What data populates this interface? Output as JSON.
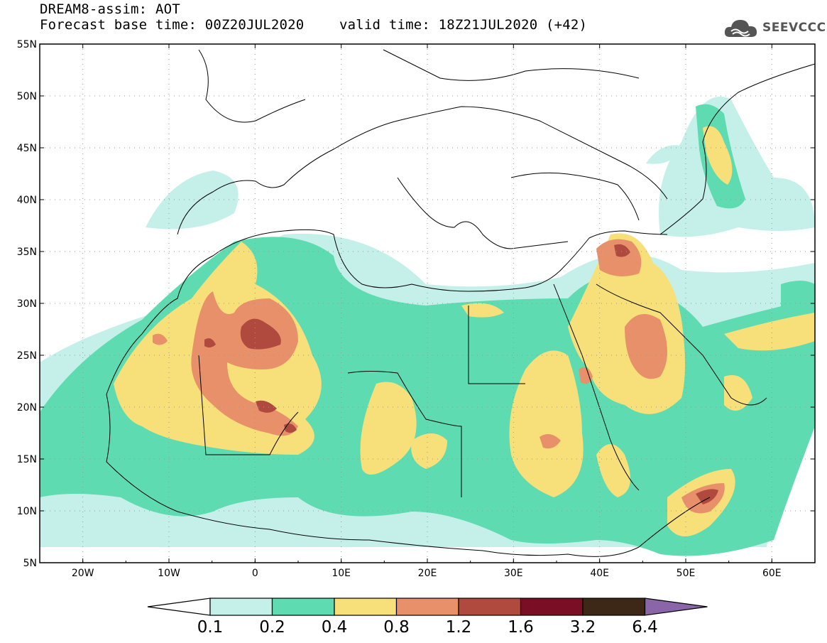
{
  "header": {
    "line1": "DREAM8-assim: AOT",
    "line2": "Forecast base time: 00Z20JUL2020",
    "line3": "valid time: 18Z21JUL2020 (+42)"
  },
  "logo": {
    "text": "SEEVCCC"
  },
  "map": {
    "lat_labels": [
      "55N",
      "50N",
      "45N",
      "40N",
      "35N",
      "30N",
      "25N",
      "20N",
      "15N",
      "10N",
      "5N"
    ],
    "lon_labels": [
      "20W",
      "10W",
      "0",
      "10E",
      "20E",
      "30E",
      "40E",
      "50E",
      "60E"
    ],
    "lat_range": [
      5,
      55
    ],
    "lon_range": [
      -25,
      65
    ],
    "grid": "dotted"
  },
  "colorbar": {
    "labels": [
      "0.1",
      "0.2",
      "0.4",
      "0.8",
      "1.2",
      "1.6",
      "3.2",
      "6.4"
    ],
    "colors": {
      "lt02": "#c5f0ea",
      "lt04": "#5edbb1",
      "lt08": "#f7e07a",
      "lt12": "#e8906a",
      "lt16": "#b04a3e",
      "lt32": "#7a0e25",
      "lt64": "#3d2716",
      "gt64": "#8a65a8"
    }
  }
}
